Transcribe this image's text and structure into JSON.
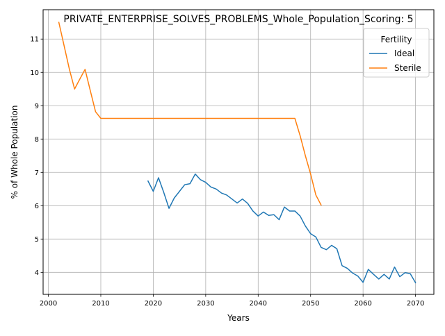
{
  "chart_data": {
    "type": "line",
    "title": "PRIVATE_ENTERPRISE_SOLVES_PROBLEMS_Whole_Population_Scoring: 5",
    "xlabel": "Years",
    "ylabel": "% of Whole Population",
    "xlim": [
      1999,
      2073.5
    ],
    "ylim": [
      3.34,
      11.88
    ],
    "xticks": [
      2000,
      2010,
      2020,
      2030,
      2040,
      2050,
      2060,
      2070
    ],
    "yticks": [
      4,
      5,
      6,
      7,
      8,
      9,
      10,
      11
    ],
    "grid": true,
    "legend": {
      "title": "Fertility",
      "placement": "top-right"
    },
    "series": [
      {
        "name": "Ideal",
        "color": "#1f77b4",
        "x": [
          2019,
          2020,
          2021,
          2022,
          2023,
          2024,
          2025,
          2026,
          2027,
          2028,
          2029,
          2030,
          2031,
          2032,
          2033,
          2034,
          2035,
          2036,
          2037,
          2038,
          2039,
          2040,
          2041,
          2042,
          2043,
          2044,
          2045,
          2046,
          2047,
          2048,
          2049,
          2050,
          2051,
          2052,
          2053,
          2054,
          2055,
          2056,
          2057,
          2058,
          2059,
          2060,
          2061,
          2062,
          2063,
          2064,
          2065,
          2066,
          2067,
          2068,
          2069,
          2070
        ],
        "y": [
          6.74,
          6.43,
          6.84,
          6.4,
          5.92,
          6.23,
          6.43,
          6.63,
          6.66,
          6.95,
          6.78,
          6.7,
          6.56,
          6.5,
          6.38,
          6.32,
          6.2,
          6.08,
          6.2,
          6.07,
          5.84,
          5.69,
          5.81,
          5.71,
          5.73,
          5.58,
          5.96,
          5.84,
          5.84,
          5.69,
          5.39,
          5.16,
          5.06,
          4.75,
          4.68,
          4.81,
          4.71,
          4.2,
          4.12,
          3.98,
          3.89,
          3.7,
          4.09,
          3.94,
          3.8,
          3.94,
          3.8,
          4.16,
          3.87,
          3.99,
          3.96,
          3.69
        ]
      },
      {
        "name": "Sterile",
        "color": "#ff7f0e",
        "x": [
          2002,
          2003,
          2004,
          2005,
          2006,
          2007,
          2008,
          2009,
          2010,
          2011,
          2020,
          2030,
          2040,
          2047,
          2048,
          2049,
          2050,
          2051,
          2052
        ],
        "y": [
          11.5,
          10.8,
          10.1,
          9.5,
          9.8,
          10.09,
          9.45,
          8.82,
          8.62,
          8.62,
          8.62,
          8.62,
          8.62,
          8.62,
          8.1,
          7.5,
          6.95,
          6.32,
          6.02
        ]
      }
    ]
  }
}
